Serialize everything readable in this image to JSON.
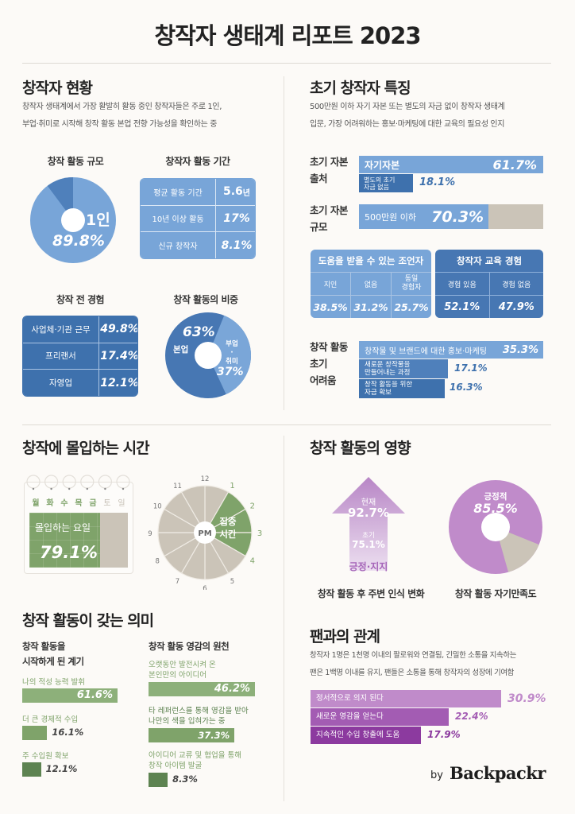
{
  "title": "창작자 생태계 리포트 2023",
  "brand": {
    "by": "by",
    "name": "Backpackr"
  },
  "colors": {
    "blue_light": "#78a5d8",
    "blue_mid": "#5b8dc7",
    "blue_dark": "#3e71ad",
    "grey": "#cbc4b8",
    "green": "#7fa36a",
    "green_dark": "#5d8351",
    "purple_light": "#c28ccb",
    "purple_mid": "#a35cb3",
    "purple_dark": "#8c3a9f"
  },
  "status": {
    "heading": "창작자 현황",
    "desc": [
      "창작자 생태계에서 가장 활발히 활동 중인 창작자들은 주로 1인,",
      "부업·취미로 시작해 창작 활동 본업 전향 가능성을 확인하는 중"
    ],
    "scale": {
      "title": "창작 활동 규모",
      "label": "1인",
      "value": "89.8%"
    },
    "period": {
      "title": "창작자 활동 기간",
      "rows": [
        {
          "label": "평균 활동 기간",
          "value": "5.6",
          "unit": "년"
        },
        {
          "label": "10년 이상 활동",
          "value": "17%",
          "unit": ""
        },
        {
          "label": "신규 창작자",
          "value": "8.1%",
          "unit": ""
        }
      ]
    },
    "experience": {
      "title": "창작 전 경험",
      "rows": [
        {
          "label": "사업체·기관 근무",
          "value": "49.8%"
        },
        {
          "label": "프리랜서",
          "value": "17.4%"
        },
        {
          "label": "자영업",
          "value": "12.1%"
        }
      ]
    },
    "share": {
      "title": "창작 활동의 비중",
      "main_label": "본업",
      "main_value": "63%",
      "side_label_1": "부업",
      "side_dot": "·",
      "side_label_2": "취미",
      "side_value": "37%"
    }
  },
  "early": {
    "heading": "초기 창작자 특징",
    "desc": [
      "500만원 이하 자기 자본 또는 별도의 자금 없이 창작자 생태계",
      "입문, 가장 어려워하는 홍보·마케팅에 대한 교육의 필요성 인지"
    ],
    "source": {
      "label": [
        "초기 자본",
        "출처"
      ],
      "bar1_label": "자기자본",
      "bar1_value": "61.7%",
      "bar2_label": [
        "별도의 초기",
        "자금 없음"
      ],
      "bar2_value": "18.1%"
    },
    "size": {
      "label": [
        "초기 자본",
        "규모"
      ],
      "bar_label": "500만원 이하",
      "bar_value": "70.3%"
    },
    "mentor": {
      "title": "도움을 받을 수 있는 조언자",
      "cols": [
        {
          "label": [
            "지인"
          ],
          "value": "38.5%"
        },
        {
          "label": [
            "없음"
          ],
          "value": "31.2%"
        },
        {
          "label": [
            "동일",
            "경험자"
          ],
          "value": "25.7%"
        }
      ]
    },
    "education": {
      "title": "창작자 교육 경험",
      "cols": [
        {
          "label": "경험 있음",
          "value": "52.1%"
        },
        {
          "label": "경험 없음",
          "value": "47.9%"
        }
      ]
    },
    "difficulty": {
      "label": [
        "창작 활동",
        "초기",
        "어려움"
      ],
      "bars": [
        {
          "label": [
            "창작물 및 브랜드에 대한 홍보·마케팅"
          ],
          "value": "35.3%"
        },
        {
          "label": [
            "새로운 창작물을",
            "만들어내는 과정"
          ],
          "value": "17.1%"
        },
        {
          "label": [
            "창작 활동을 위한",
            "자금 확보"
          ],
          "value": "16.3%"
        }
      ]
    }
  },
  "immersion": {
    "heading": "창작에 몰입하는 시간",
    "days": [
      "월",
      "화",
      "수",
      "목",
      "금",
      "토",
      "일"
    ],
    "day_label": "몰입하는 요일",
    "day_value": "79.1%",
    "clock_numbers": [
      "12",
      "1",
      "2",
      "3",
      "4",
      "5",
      "6",
      "7",
      "8",
      "9",
      "10",
      "11"
    ],
    "clock_center": "PM",
    "focus_label": [
      "집중",
      "시간"
    ]
  },
  "meaning": {
    "heading": "창작 활동이 갖는 의미",
    "start": {
      "title": [
        "창작 활동을",
        "시작하게 된 계기"
      ],
      "items": [
        {
          "label": [
            "나의 적성 능력 발휘"
          ],
          "value": "61.6%"
        },
        {
          "label": [
            "더 큰 경제적 수입"
          ],
          "value": "16.1%"
        },
        {
          "label": [
            "주 수입원 확보"
          ],
          "value": "12.1%"
        }
      ]
    },
    "inspiration": {
      "title": "창작 활동 영감의 원천",
      "items": [
        {
          "label": [
            "오랫동안 발전시켜 온",
            "본인만의 아이디어"
          ],
          "value": "46.2%"
        },
        {
          "label": [
            "타 레퍼런스를 통해 영감을 받아",
            "나만의 색을 입혀가는 중"
          ],
          "value": "37.3%"
        },
        {
          "label": [
            "아이디어 교류 및 협업을 통해",
            "창작 아이템 발굴"
          ],
          "value": "8.3%"
        }
      ]
    }
  },
  "impact": {
    "heading": "창작 활동의 영향",
    "arrow": {
      "now_label": "현재",
      "now_value": "92.7%",
      "early_label": "초기",
      "early_value": "75.1%",
      "bottom": "긍정·지지",
      "caption": "창작 활동 후 주변 인식 변화"
    },
    "satisfaction": {
      "label": "긍정적",
      "value": "85.5%",
      "caption": "창작 활동 자기만족도"
    }
  },
  "fans": {
    "heading": "팬과의 관계",
    "desc": [
      "창작자 1명은 1천명 이내의 팔로워와 연결됨, 긴밀한 소통을 지속하는",
      "팬은 1백명 이내를 유지, 팬들은 소통을 통해 창작자의 성장에 기여함"
    ],
    "bars": [
      {
        "label": "정서적으로 의지 된다",
        "value": "30.9%"
      },
      {
        "label": "새로운 영감을 얻는다",
        "value": "22.4%"
      },
      {
        "label": "지속적인 수입 창출에 도움",
        "value": "17.9%"
      }
    ]
  },
  "chart_data": [
    {
      "type": "pie",
      "title": "창작 활동 규모",
      "categories": [
        "1인",
        "기타"
      ],
      "values": [
        89.8,
        10.2
      ]
    },
    {
      "type": "table",
      "title": "창작자 활동 기간",
      "categories": [
        "평균 활동 기간",
        "10년 이상 활동",
        "신규 창작자"
      ],
      "values": [
        "5.6년",
        "17%",
        "8.1%"
      ]
    },
    {
      "type": "table",
      "title": "창작 전 경험",
      "categories": [
        "사업체·기관 근무",
        "프리랜서",
        "자영업"
      ],
      "values": [
        49.8,
        17.4,
        12.1
      ]
    },
    {
      "type": "pie",
      "title": "창작 활동의 비중",
      "categories": [
        "본업",
        "부업·취미"
      ],
      "values": [
        63,
        37
      ]
    },
    {
      "type": "bar",
      "title": "초기 자본 출처",
      "categories": [
        "자기자본",
        "별도의 초기 자금 없음"
      ],
      "values": [
        61.7,
        18.1
      ]
    },
    {
      "type": "bar",
      "title": "초기 자본 규모",
      "categories": [
        "500만원 이하"
      ],
      "values": [
        70.3
      ]
    },
    {
      "type": "table",
      "title": "도움을 받을 수 있는 조언자",
      "categories": [
        "지인",
        "없음",
        "동일 경험자"
      ],
      "values": [
        38.5,
        31.2,
        25.7
      ]
    },
    {
      "type": "table",
      "title": "창작자 교육 경험",
      "categories": [
        "경험 있음",
        "경험 없음"
      ],
      "values": [
        52.1,
        47.9
      ]
    },
    {
      "type": "bar",
      "title": "창작 활동 초기 어려움",
      "categories": [
        "창작물 및 브랜드에 대한 홍보·마케팅",
        "새로운 창작물을 만들어내는 과정",
        "창작 활동을 위한 자금 확보"
      ],
      "values": [
        35.3,
        17.1,
        16.3
      ]
    },
    {
      "type": "bar",
      "title": "몰입하는 요일",
      "categories": [
        "월-금"
      ],
      "values": [
        79.1
      ]
    },
    {
      "type": "pie",
      "title": "집중 시간",
      "categories": [
        "PM 1-4",
        "기타"
      ],
      "values": [
        3,
        9
      ]
    },
    {
      "type": "bar",
      "title": "창작 활동을 시작하게 된 계기",
      "categories": [
        "나의 적성 능력 발휘",
        "더 큰 경제적 수입",
        "주 수입원 확보"
      ],
      "values": [
        61.6,
        16.1,
        12.1
      ]
    },
    {
      "type": "bar",
      "title": "창작 활동 영감의 원천",
      "categories": [
        "오랫동안 발전시켜 온 본인만의 아이디어",
        "타 레퍼런스를 통해 영감을 받아 나만의 색을 입혀가는 중",
        "아이디어 교류 및 협업을 통해 창작 아이템 발굴"
      ],
      "values": [
        46.2,
        37.3,
        8.3
      ]
    },
    {
      "type": "bar",
      "title": "창작 활동 후 주변 인식 변화",
      "categories": [
        "초기",
        "현재"
      ],
      "values": [
        75.1,
        92.7
      ]
    },
    {
      "type": "pie",
      "title": "창작 활동 자기만족도",
      "categories": [
        "긍정적",
        "기타"
      ],
      "values": [
        85.5,
        14.5
      ]
    },
    {
      "type": "bar",
      "title": "팬과의 관계",
      "categories": [
        "정서적으로 의지 된다",
        "새로운 영감을 얻는다",
        "지속적인 수입 창출에 도움"
      ],
      "values": [
        30.9,
        22.4,
        17.9
      ]
    }
  ]
}
